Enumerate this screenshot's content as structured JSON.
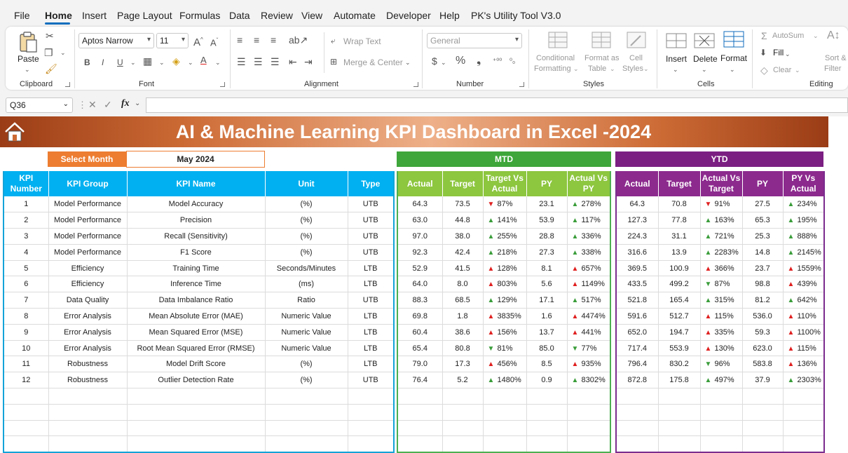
{
  "menu": [
    "File",
    "Home",
    "Insert",
    "Page Layout",
    "Formulas",
    "Data",
    "Review",
    "View",
    "Automate",
    "Developer",
    "Help",
    "PK's Utility Tool V3.0"
  ],
  "ribbon": {
    "clipboard": {
      "paste": "Paste",
      "group": "Clipboard"
    },
    "font": {
      "name": "Aptos Narrow",
      "size": "11",
      "group": "Font"
    },
    "alignment": {
      "wrap": "Wrap Text",
      "merge": "Merge & Center",
      "group": "Alignment"
    },
    "number": {
      "format": "General",
      "group": "Number"
    },
    "styles": {
      "conditional": "Conditional",
      "formatting": "Formatting",
      "format_as": "Format as",
      "table": "Table",
      "cell": "Cell",
      "styles_label": "Styles",
      "group": "Styles"
    },
    "cells": {
      "insert": "Insert",
      "delete": "Delete",
      "format": "Format",
      "group": "Cells"
    },
    "editing": {
      "autosum": "AutoSum",
      "fill": "Fill",
      "clear": "Clear",
      "sort": "Sort &",
      "filter": "Filter",
      "group": "Editing"
    }
  },
  "formula_bar": {
    "name_box": "Q36",
    "fx": "fx",
    "value": ""
  },
  "dashboard": {
    "title": "AI & Machine Learning KPI Dashboard in Excel -2024",
    "select_month_label": "Select Month",
    "select_month_value": "May 2024",
    "mtd_label": "MTD",
    "ytd_label": "YTD"
  },
  "kpi_headers": [
    "KPI Number",
    "KPI Group",
    "KPI Name",
    "Unit",
    "Type"
  ],
  "mtd_headers": [
    "Actual",
    "Target",
    "Target Vs Actual",
    "PY",
    "Actual Vs PY"
  ],
  "ytd_headers": [
    "Actual",
    "Target",
    "Actual Vs Target",
    "PY",
    "PY Vs Actual"
  ],
  "rows": [
    {
      "num": "1",
      "group": "Model Performance",
      "name": "Model Accuracy",
      "unit": "(%)",
      "type": "UTB",
      "mtd": [
        "64.3",
        "73.5",
        "87%",
        "23.1",
        "278%"
      ],
      "mtd_arrows": [
        "down",
        "up"
      ],
      "ytd": [
        "64.3",
        "70.8",
        "91%",
        "27.5",
        "234%"
      ],
      "ytd_arrows": [
        "down",
        "up"
      ]
    },
    {
      "num": "2",
      "group": "Model Performance",
      "name": "Precision",
      "unit": "(%)",
      "type": "UTB",
      "mtd": [
        "63.0",
        "44.8",
        "141%",
        "53.9",
        "117%"
      ],
      "mtd_arrows": [
        "up",
        "up"
      ],
      "ytd": [
        "127.3",
        "77.8",
        "163%",
        "65.3",
        "195%"
      ],
      "ytd_arrows": [
        "up",
        "up"
      ]
    },
    {
      "num": "3",
      "group": "Model Performance",
      "name": "Recall (Sensitivity)",
      "unit": "(%)",
      "type": "UTB",
      "mtd": [
        "97.0",
        "38.0",
        "255%",
        "28.8",
        "336%"
      ],
      "mtd_arrows": [
        "up",
        "up"
      ],
      "ytd": [
        "224.3",
        "31.1",
        "721%",
        "25.3",
        "888%"
      ],
      "ytd_arrows": [
        "up",
        "up"
      ]
    },
    {
      "num": "4",
      "group": "Model Performance",
      "name": "F1 Score",
      "unit": "(%)",
      "type": "UTB",
      "mtd": [
        "92.3",
        "42.4",
        "218%",
        "27.3",
        "338%"
      ],
      "mtd_arrows": [
        "up",
        "up"
      ],
      "ytd": [
        "316.6",
        "13.9",
        "2283%",
        "14.8",
        "2145%"
      ],
      "ytd_arrows": [
        "up",
        "up"
      ]
    },
    {
      "num": "5",
      "group": "Efficiency",
      "name": "Training Time",
      "unit": "Seconds/Minutes",
      "type": "LTB",
      "mtd": [
        "52.9",
        "41.5",
        "128%",
        "8.1",
        "657%"
      ],
      "mtd_arrows": [
        "upred",
        "upred"
      ],
      "ytd": [
        "369.5",
        "100.9",
        "366%",
        "23.7",
        "1559%"
      ],
      "ytd_arrows": [
        "upred",
        "upred"
      ]
    },
    {
      "num": "6",
      "group": "Efficiency",
      "name": "Inference Time",
      "unit": "(ms)",
      "type": "LTB",
      "mtd": [
        "64.0",
        "8.0",
        "803%",
        "5.6",
        "1149%"
      ],
      "mtd_arrows": [
        "upred",
        "upred"
      ],
      "ytd": [
        "433.5",
        "499.2",
        "87%",
        "98.8",
        "439%"
      ],
      "ytd_arrows": [
        "downgreen",
        "upred"
      ]
    },
    {
      "num": "7",
      "group": "Data Quality",
      "name": "Data Imbalance Ratio",
      "unit": "Ratio",
      "type": "UTB",
      "mtd": [
        "88.3",
        "68.5",
        "129%",
        "17.1",
        "517%"
      ],
      "mtd_arrows": [
        "up",
        "up"
      ],
      "ytd": [
        "521.8",
        "165.4",
        "315%",
        "81.2",
        "642%"
      ],
      "ytd_arrows": [
        "up",
        "up"
      ]
    },
    {
      "num": "8",
      "group": "Error Analysis",
      "name": "Mean Absolute Error (MAE)",
      "unit": "Numeric Value",
      "type": "LTB",
      "mtd": [
        "69.8",
        "1.8",
        "3835%",
        "1.6",
        "4474%"
      ],
      "mtd_arrows": [
        "upred",
        "upred"
      ],
      "ytd": [
        "591.6",
        "512.7",
        "115%",
        "536.0",
        "110%"
      ],
      "ytd_arrows": [
        "upred",
        "upred"
      ]
    },
    {
      "num": "9",
      "group": "Error Analysis",
      "name": "Mean Squared Error (MSE)",
      "unit": "Numeric Value",
      "type": "LTB",
      "mtd": [
        "60.4",
        "38.6",
        "156%",
        "13.7",
        "441%"
      ],
      "mtd_arrows": [
        "upred",
        "upred"
      ],
      "ytd": [
        "652.0",
        "194.7",
        "335%",
        "59.3",
        "1100%"
      ],
      "ytd_arrows": [
        "upred",
        "upred"
      ]
    },
    {
      "num": "10",
      "group": "Error Analysis",
      "name": "Root Mean Squared Error (RMSE)",
      "unit": "Numeric Value",
      "type": "LTB",
      "mtd": [
        "65.4",
        "80.8",
        "81%",
        "85.0",
        "77%"
      ],
      "mtd_arrows": [
        "downgreen",
        "downgreen"
      ],
      "ytd": [
        "717.4",
        "553.9",
        "130%",
        "623.0",
        "115%"
      ],
      "ytd_arrows": [
        "upred",
        "upred"
      ]
    },
    {
      "num": "11",
      "group": "Robustness",
      "name": "Model Drift Score",
      "unit": "(%)",
      "type": "LTB",
      "mtd": [
        "79.0",
        "17.3",
        "456%",
        "8.5",
        "935%"
      ],
      "mtd_arrows": [
        "upred",
        "upred"
      ],
      "ytd": [
        "796.4",
        "830.2",
        "96%",
        "583.8",
        "136%"
      ],
      "ytd_arrows": [
        "downgreen",
        "upred"
      ]
    },
    {
      "num": "12",
      "group": "Robustness",
      "name": "Outlier Detection Rate",
      "unit": "(%)",
      "type": "UTB",
      "mtd": [
        "76.4",
        "5.2",
        "1480%",
        "0.9",
        "8302%"
      ],
      "mtd_arrows": [
        "up",
        "up"
      ],
      "ytd": [
        "872.8",
        "175.8",
        "497%",
        "37.9",
        "2303%"
      ],
      "ytd_arrows": [
        "up",
        "up"
      ]
    }
  ],
  "empty_rows": 4,
  "colors": {
    "kpi_header": "#00b0f0",
    "mtd_header": "#8dc63f",
    "ytd_header": "#8c2a8e",
    "select_month": "#ed7d31",
    "mtd_bar": "#3ea63a",
    "ytd_bar": "#7b1f82",
    "title_band": "#cc6a34"
  }
}
